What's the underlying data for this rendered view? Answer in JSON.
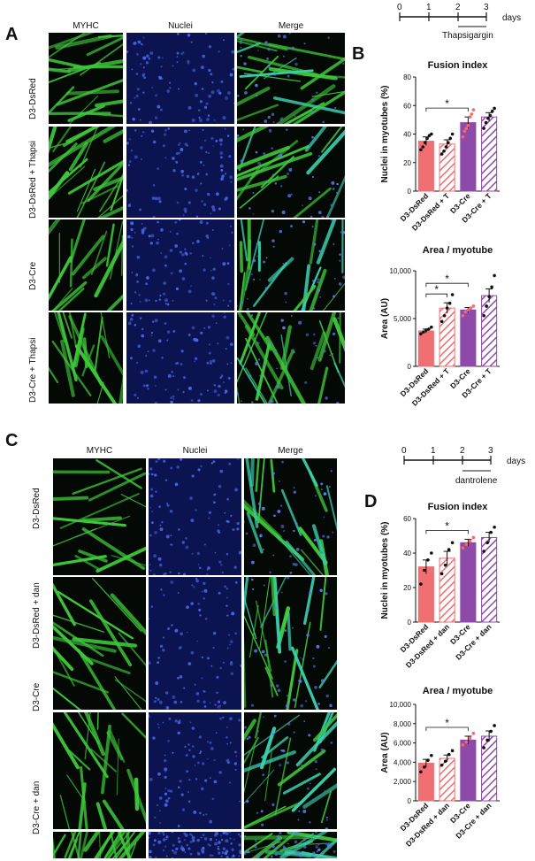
{
  "panelA": {
    "letter": "A",
    "columns": [
      "MYHC",
      "Nuclei",
      "Merge"
    ],
    "rows": [
      "D3-DsRed",
      "D3-DsRed + Thapsi",
      "D3-Cre",
      "D3-Cre + Thapsi"
    ]
  },
  "panelB": {
    "letter": "B",
    "timeline": {
      "ticks": [
        "0",
        "1",
        "2",
        "3"
      ],
      "unit": "days",
      "treatment": "Thapsigargin"
    }
  },
  "panelC": {
    "letter": "C",
    "columns": [
      "MYHC",
      "Nuclei",
      "Merge"
    ],
    "rows": [
      "D3-DsRed",
      "D3-DsRed + dan",
      "D3-Cre",
      "D3-Cre + dan"
    ]
  },
  "panelD": {
    "letter": "D",
    "timeline": {
      "ticks": [
        "0",
        "1",
        "2",
        "3"
      ],
      "unit": "days",
      "treatment": "dantrolene"
    }
  },
  "colors": {
    "dsred": "#ef6f73",
    "cre": "#8e4aa8",
    "myhc": "#39c43a",
    "nuclei": "#1d2a8c"
  },
  "chart_data": [
    {
      "type": "bar",
      "title": "Fusion index",
      "ylabel": "Nuclei in myotubes (%)",
      "ylim": [
        0,
        80
      ],
      "yticks": [
        "0",
        "20",
        "40",
        "60",
        "80"
      ],
      "categories": [
        "D3-DsRed",
        "D3-DsRed + T",
        "D3-Cre",
        "D3-Cre + T"
      ],
      "values": [
        35,
        33,
        48,
        52
      ],
      "errors": [
        3,
        3,
        4,
        3
      ],
      "points": [
        [
          29,
          31,
          34,
          37,
          39,
          40
        ],
        [
          26,
          28,
          31,
          34,
          37,
          40
        ],
        [
          38,
          42,
          44,
          46,
          52,
          54,
          57
        ],
        [
          44,
          48,
          51,
          53,
          56,
          58
        ]
      ],
      "significance": [
        {
          "from": 0,
          "to": 2,
          "label": "*"
        }
      ]
    },
    {
      "type": "bar",
      "title": "Area / myotube",
      "ylabel": "Area (AU)",
      "ylim": [
        0,
        10000
      ],
      "yticks": [
        "0",
        "5,000",
        "10,000"
      ],
      "categories": [
        "D3-DsRed",
        "D3-DsRed + T",
        "D3-Cre",
        "D3-Cre + T"
      ],
      "values": [
        3700,
        6100,
        5900,
        7400
      ],
      "errors": [
        200,
        550,
        250,
        700
      ],
      "points": [
        [
          3400,
          3600,
          3800,
          3900,
          4100
        ],
        [
          4700,
          5300,
          6100,
          6600,
          7500
        ],
        [
          5300,
          5700,
          5900,
          6100,
          6300
        ],
        [
          5300,
          6300,
          7300,
          8300,
          9500
        ]
      ],
      "significance": [
        {
          "from": 0,
          "to": 1,
          "label": "*"
        },
        {
          "from": 0,
          "to": 2,
          "label": "*"
        }
      ]
    },
    {
      "type": "bar",
      "title": "Fusion index",
      "ylabel": "Nuclei in myotubes (%)",
      "ylim": [
        0,
        60
      ],
      "yticks": [
        "0",
        "20",
        "40",
        "60"
      ],
      "categories": [
        "D3-DsRed",
        "D3-DsRed + dan",
        "D3-Cre",
        "D3-Cre + dan"
      ],
      "values": [
        32,
        37,
        46,
        49
      ],
      "errors": [
        4,
        4,
        2,
        3
      ],
      "points": [
        [
          22,
          30,
          36,
          40
        ],
        [
          28,
          33,
          42,
          46
        ],
        [
          43,
          45,
          47,
          49
        ],
        [
          41,
          46,
          52,
          55
        ]
      ],
      "significance": [
        {
          "from": 0,
          "to": 2,
          "label": "*"
        }
      ]
    },
    {
      "type": "bar",
      "title": "Area / myotube",
      "ylabel": "Area (AU)",
      "ylim": [
        0,
        10000
      ],
      "yticks": [
        "0",
        "2,000",
        "4,000",
        "6,000",
        "8,000",
        "10,000"
      ],
      "categories": [
        "D3-DsRed",
        "D3-DsRed + dan",
        "D3-Cre",
        "D3-Cre + dan"
      ],
      "values": [
        3900,
        4400,
        6300,
        6700
      ],
      "errors": [
        400,
        350,
        400,
        550
      ],
      "points": [
        [
          3000,
          3500,
          4200,
          4700
        ],
        [
          3700,
          4100,
          4800,
          5200
        ],
        [
          5800,
          6100,
          6500,
          7000
        ],
        [
          5500,
          6300,
          7200,
          7800
        ]
      ],
      "significance": [
        {
          "from": 0,
          "to": 2,
          "label": "*"
        }
      ]
    }
  ]
}
